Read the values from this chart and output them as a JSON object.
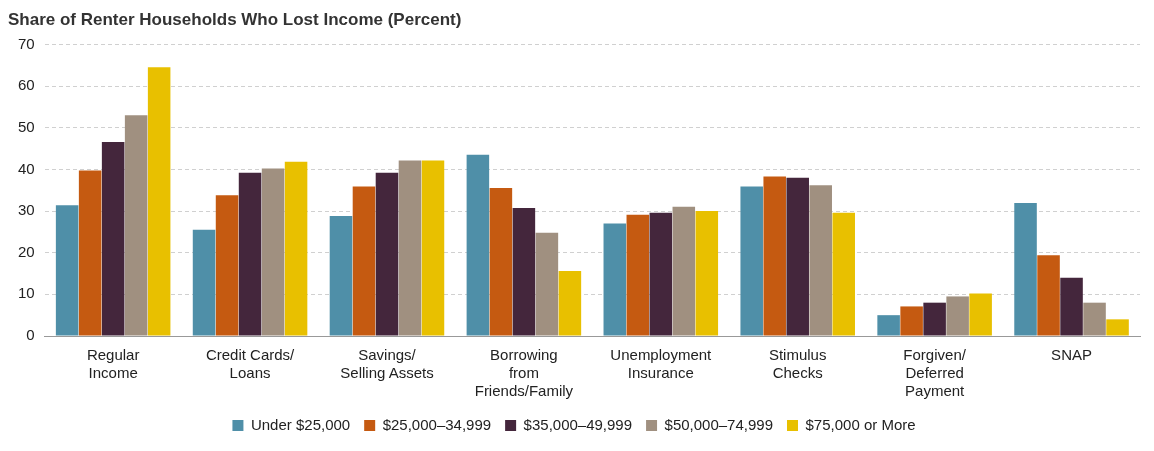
{
  "chart_data": {
    "type": "bar",
    "title": "Share of Renter Households Who Lost Income (Percent)",
    "categories": [
      "Regular\nIncome",
      "Credit Cards/\nLoans",
      "Savings/\nSelling Assets",
      "Borrowing\nfrom\nFriends/Family",
      "Unemployment\nInsurance",
      "Stimulus\nChecks",
      "Forgiven/\nDeferred\nPayment",
      "SNAP"
    ],
    "series": [
      {
        "name": "Under $25,000",
        "color": "#4f8fa8",
        "values": [
          31.4,
          25.5,
          28.8,
          43.5,
          27,
          35.9,
          5,
          31.9
        ]
      },
      {
        "name": "$25,000–34,999",
        "color": "#c55a11",
        "values": [
          39.7,
          33.8,
          35.9,
          35.5,
          29.1,
          38.3,
          7.1,
          19.4
        ]
      },
      {
        "name": "$35,000–49,999",
        "color": "#44263c",
        "values": [
          46.6,
          39.2,
          39.2,
          30.7,
          29.6,
          38,
          8,
          14
        ]
      },
      {
        "name": "$50,000–74,999",
        "color": "#a09080",
        "values": [
          53,
          40.2,
          42.1,
          24.8,
          31,
          36.2,
          9.5,
          8
        ]
      },
      {
        "name": "$75,000 or More",
        "color": "#e8c000",
        "values": [
          64.5,
          41.8,
          42.1,
          15.6,
          30,
          29.6,
          10.2,
          4
        ]
      }
    ],
    "ylim": [
      0,
      70
    ],
    "yticks": [
      0,
      10,
      20,
      30,
      40,
      50,
      60,
      70
    ],
    "grid": "y",
    "legend": "bottom"
  }
}
